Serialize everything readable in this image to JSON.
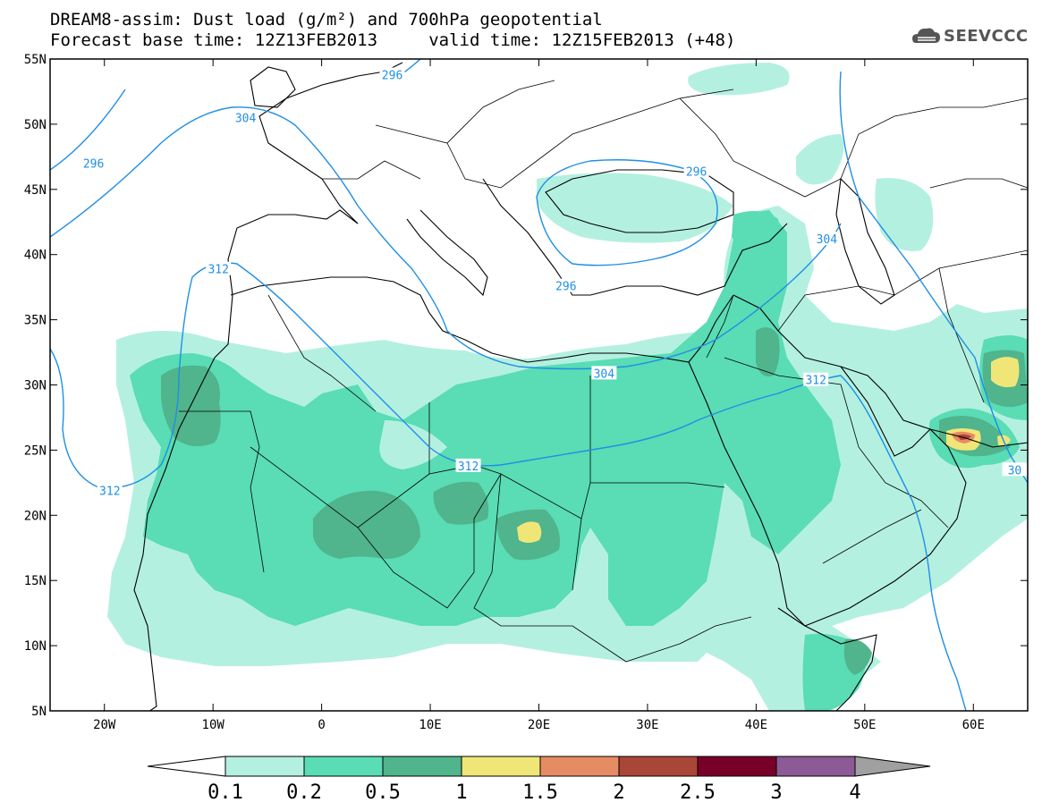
{
  "title": {
    "line1": "DREAM8-assim: Dust load (g/m²) and 700hPa geopotential",
    "line2": "Forecast base time: 12Z13FEB2013     valid time: 12Z15FEB2013 (+48)"
  },
  "logo": {
    "text": "SEEVCCC",
    "icon": "cloud-logo-icon"
  },
  "map": {
    "lon_range": [
      -25,
      65
    ],
    "lat_range": [
      5,
      55
    ],
    "lat_ticks": [
      {
        "value": 55,
        "label": "55N"
      },
      {
        "value": 50,
        "label": "50N"
      },
      {
        "value": 45,
        "label": "45N"
      },
      {
        "value": 40,
        "label": "40N"
      },
      {
        "value": 35,
        "label": "35N"
      },
      {
        "value": 30,
        "label": "30N"
      },
      {
        "value": 25,
        "label": "25N"
      },
      {
        "value": 20,
        "label": "20N"
      },
      {
        "value": 15,
        "label": "15N"
      },
      {
        "value": 10,
        "label": "10N"
      },
      {
        "value": 5,
        "label": "5N"
      }
    ],
    "lon_ticks": [
      {
        "value": -20,
        "label": "20W"
      },
      {
        "value": -10,
        "label": "10W"
      },
      {
        "value": 0,
        "label": "0"
      },
      {
        "value": 10,
        "label": "10E"
      },
      {
        "value": 20,
        "label": "20E"
      },
      {
        "value": 30,
        "label": "30E"
      },
      {
        "value": 40,
        "label": "40E"
      },
      {
        "value": 50,
        "label": "50E"
      },
      {
        "value": 60,
        "label": "60E"
      }
    ],
    "contour_labels": [
      {
        "text": "296",
        "lon": -21,
        "lat": 47
      },
      {
        "text": "304",
        "lon": -7,
        "lat": 50.5
      },
      {
        "text": "296",
        "lon": 6.5,
        "lat": 53.8
      },
      {
        "text": "296",
        "lon": 34.5,
        "lat": 46.4
      },
      {
        "text": "296",
        "lon": 22.5,
        "lat": 37.6
      },
      {
        "text": "304",
        "lon": 46.5,
        "lat": 41.2
      },
      {
        "text": "312",
        "lon": -9.5,
        "lat": 38.9
      },
      {
        "text": "304",
        "lon": 26,
        "lat": 30.9
      },
      {
        "text": "312",
        "lon": 13.5,
        "lat": 23.8
      },
      {
        "text": "312",
        "lon": -19.5,
        "lat": 21.9
      },
      {
        "text": "312",
        "lon": 45.5,
        "lat": 30.4
      },
      {
        "text": "30",
        "lon": 63.8,
        "lat": 23.5
      }
    ]
  },
  "colorbar": {
    "colors": [
      "#b4f0e0",
      "#5adcb4",
      "#50b48c",
      "#f0e678",
      "#e68c64",
      "#aa4637",
      "#780028",
      "#8c5a96"
    ],
    "under_color": "#ffffff",
    "over_color": "#a0a0a0",
    "labels": [
      "0.1",
      "0.2",
      "0.5",
      "1",
      "1.5",
      "2",
      "2.5",
      "3",
      "4"
    ]
  },
  "styles": {
    "contour_color": "#1f8fe6",
    "border_color": "#000000",
    "light_dust": "#b4f0e0",
    "medium_dust": "#5adcb4",
    "dark_dust": "#50b48c",
    "yellow_dust": "#f0e678",
    "red_dust": "#aa4637"
  }
}
